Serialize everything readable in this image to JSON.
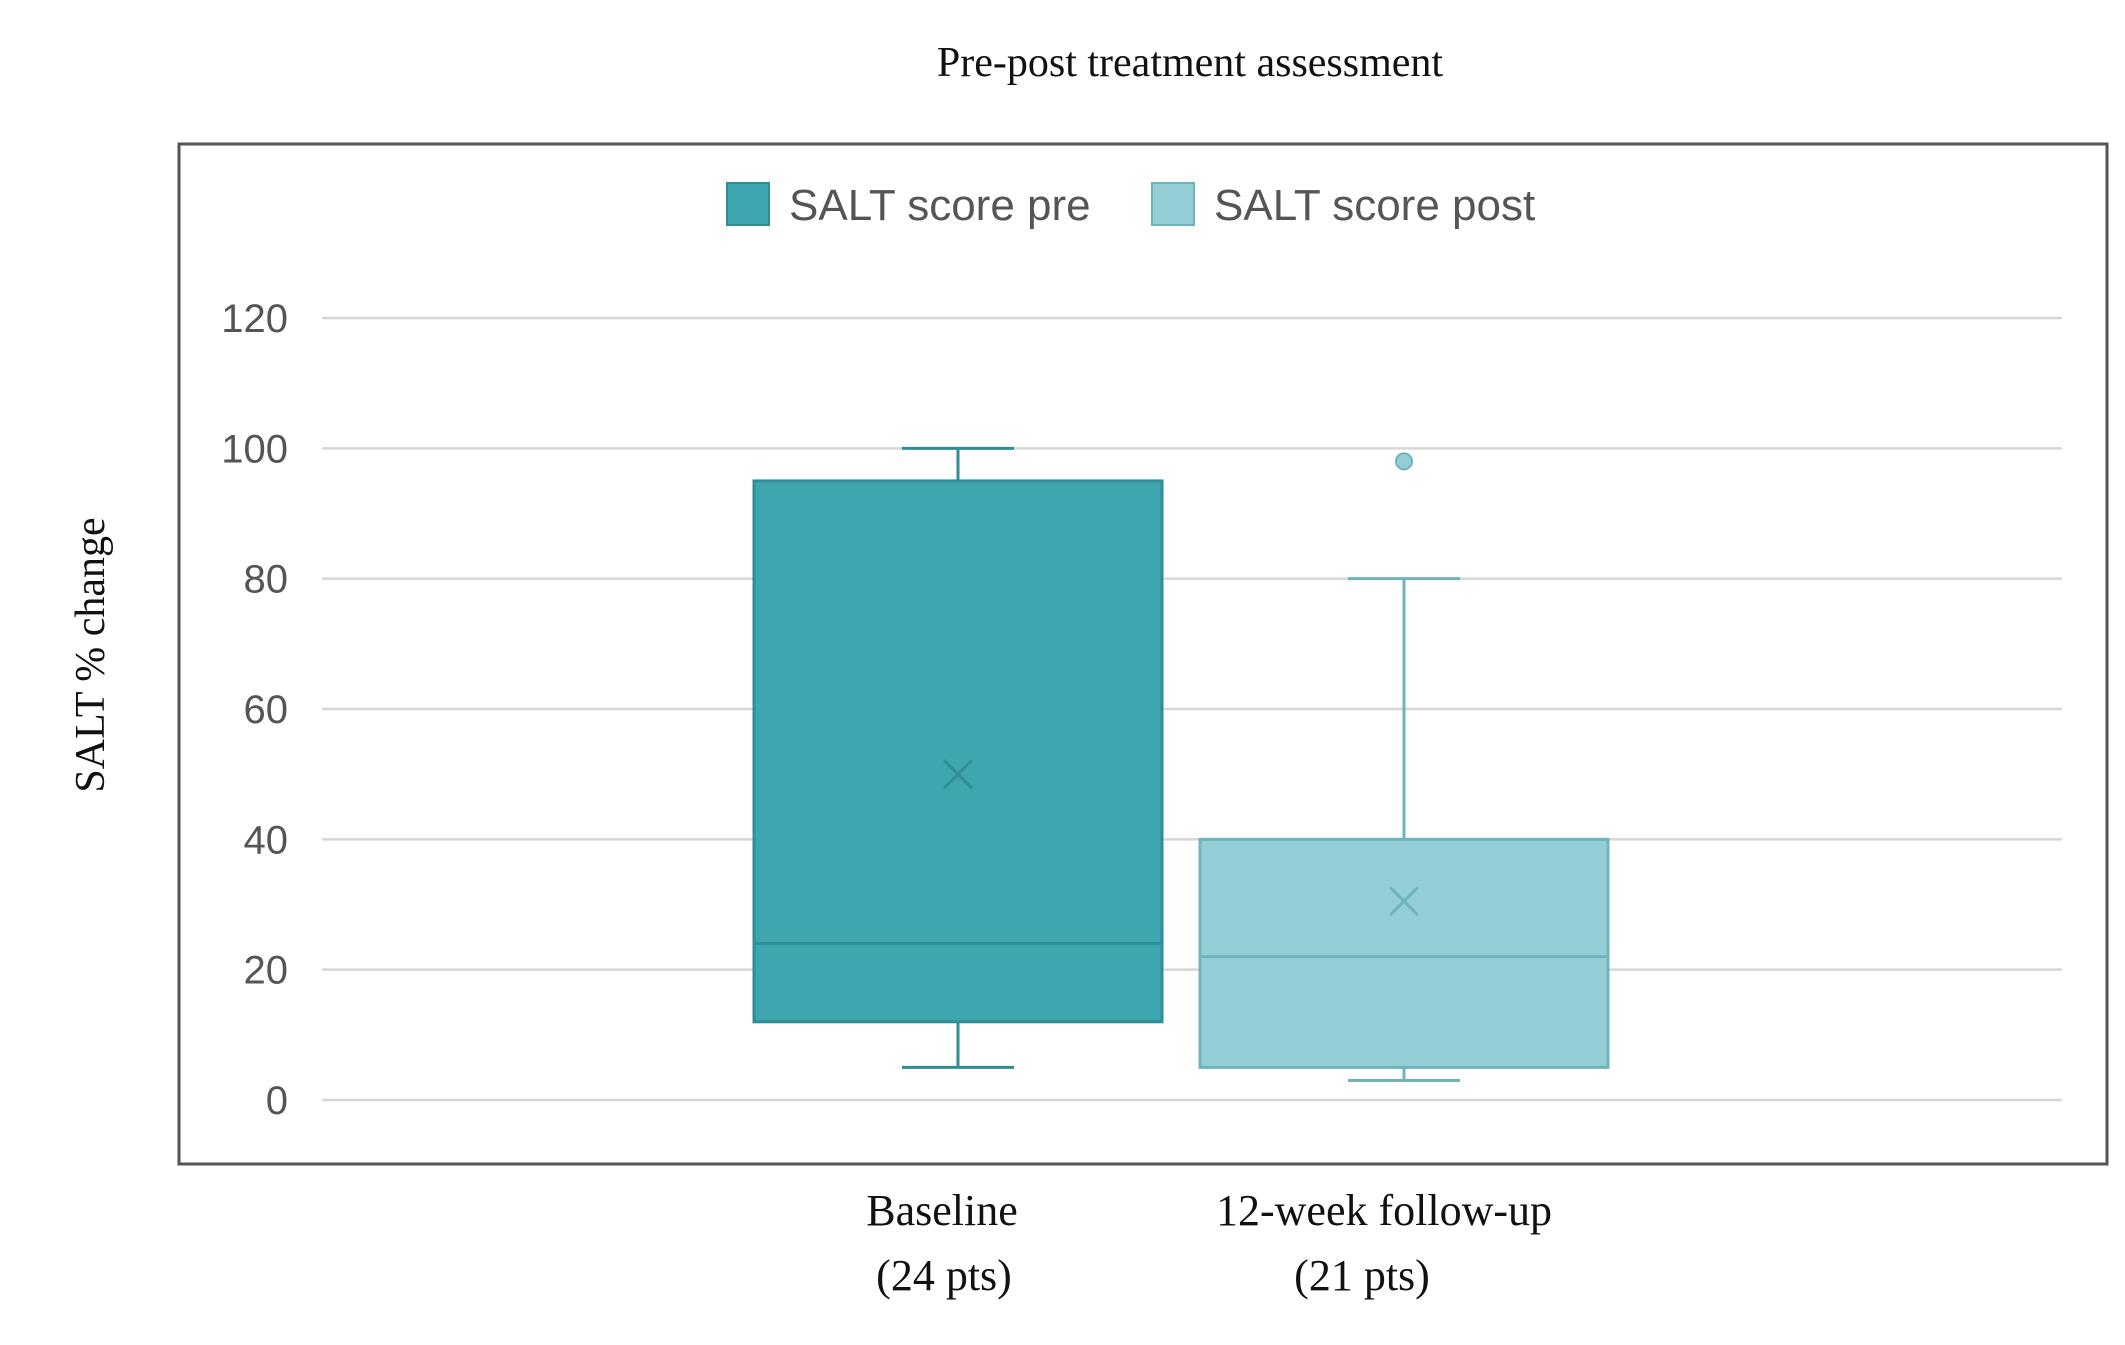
{
  "chart_data": {
    "type": "box",
    "title": "Pre-post treatment assessment",
    "ylabel": "SALT % change",
    "xlabel": "",
    "ylim": [
      0,
      120
    ],
    "yticks": [
      0,
      20,
      40,
      60,
      80,
      100,
      120
    ],
    "grid": true,
    "legend_position": "top-center",
    "categories": [
      {
        "line1": "Baseline",
        "line2": "(24 pts)"
      },
      {
        "line1": "12-week follow-up",
        "line2": "(21 pts)"
      }
    ],
    "series": [
      {
        "name": "SALT score pre",
        "color": "#3ea6ae",
        "edge_color": "#2f8e96",
        "category_index": 0,
        "whisker_low": 5,
        "q1": 12,
        "median": 24,
        "q3": 95,
        "whisker_high": 100,
        "mean": 50,
        "outliers": []
      },
      {
        "name": "SALT score post",
        "color": "#94ced5",
        "edge_color": "#6fb4bc",
        "category_index": 1,
        "whisker_low": 3,
        "q1": 5,
        "median": 22,
        "q3": 40,
        "whisker_high": 80,
        "mean": 30.5,
        "outliers": [
          98
        ]
      }
    ]
  }
}
